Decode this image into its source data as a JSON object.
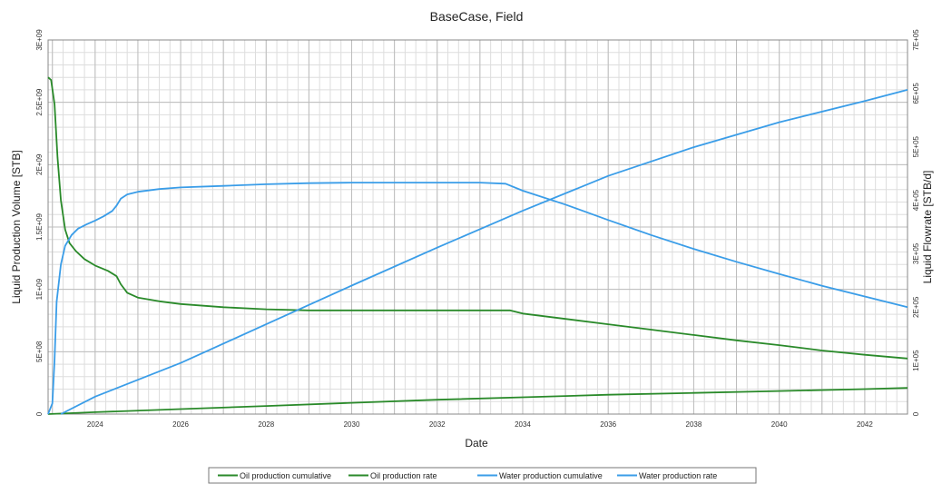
{
  "chart_data": {
    "type": "line",
    "title": "BaseCase, Field",
    "xlabel": "Date",
    "ylabel_left": "Liquid Production Volume [STB]",
    "ylabel_right": "Liquid Flowrate [STB/d]",
    "x_ticks": [
      "2024",
      "2026",
      "2028",
      "2030",
      "2032",
      "2034",
      "2036",
      "2038",
      "2040",
      "2042"
    ],
    "x_tick_years": [
      2024,
      2026,
      2028,
      2030,
      2032,
      2034,
      2036,
      2038,
      2040,
      2042
    ],
    "xlim": [
      2022.9,
      2043.0
    ],
    "left_axis": {
      "ylim": [
        0,
        3000000000
      ],
      "ticks": [
        {
          "v": 0,
          "label": "0"
        },
        {
          "v": 500000000,
          "label": "5E+08"
        },
        {
          "v": 1000000000,
          "label": "1E+09"
        },
        {
          "v": 1500000000,
          "label": "1.5E+09"
        },
        {
          "v": 2000000000,
          "label": "2E+09"
        },
        {
          "v": 2500000000,
          "label": "2.5E+09"
        },
        {
          "v": 3000000000,
          "label": "3E+09"
        }
      ]
    },
    "right_axis": {
      "ylim": [
        0,
        700000
      ],
      "ticks": [
        {
          "v": 0,
          "label": "0"
        },
        {
          "v": 100000,
          "label": "1E+05"
        },
        {
          "v": 200000,
          "label": "2E+05"
        },
        {
          "v": 300000,
          "label": "3E+05"
        },
        {
          "v": 400000,
          "label": "4E+05"
        },
        {
          "v": 500000,
          "label": "5E+05"
        },
        {
          "v": 600000,
          "label": "6E+05"
        },
        {
          "v": 700000,
          "label": "7E+05"
        }
      ]
    },
    "grid": true,
    "legend_position": "bottom",
    "series": [
      {
        "name": "Oil production cumulative",
        "axis": "left",
        "color": "#2a8a2a",
        "x": [
          2022.9,
          2024,
          2026,
          2028,
          2030,
          2032,
          2034,
          2036,
          2038,
          2040,
          2042,
          2043.0
        ],
        "y": [
          0,
          15000000,
          40000000,
          65000000,
          90000000,
          115000000,
          135000000,
          155000000,
          170000000,
          185000000,
          200000000,
          210000000
        ]
      },
      {
        "name": "Oil production rate",
        "axis": "right",
        "color": "#2a8a2a",
        "x": [
          2022.9,
          2022.97,
          2023.05,
          2023.12,
          2023.2,
          2023.3,
          2023.4,
          2023.55,
          2023.75,
          2024.0,
          2024.3,
          2024.5,
          2024.6,
          2024.75,
          2025.0,
          2025.5,
          2026.0,
          2027.0,
          2028.0,
          2029.0,
          2030.0,
          2031.0,
          2032.0,
          2033.0,
          2033.7,
          2034.0,
          2035.0,
          2036.0,
          2037.0,
          2038.0,
          2039.0,
          2040.0,
          2041.0,
          2042.0,
          2043.0
        ],
        "y": [
          630000,
          625000,
          580000,
          480000,
          400000,
          345000,
          320000,
          305000,
          290000,
          278000,
          268000,
          258000,
          243000,
          227000,
          218000,
          211000,
          206000,
          200000,
          196000,
          194000,
          194000,
          194000,
          194000,
          194000,
          194000,
          188000,
          178000,
          168000,
          158000,
          148000,
          138000,
          129000,
          119000,
          111000,
          104000
        ]
      },
      {
        "name": "Water production cumulative",
        "axis": "left",
        "color": "#3a9de8",
        "x": [
          2023.2,
          2024,
          2026,
          2028,
          2030,
          2032,
          2034,
          2036,
          2038,
          2040,
          2042,
          2043.0
        ],
        "y": [
          0,
          140000000,
          410000000,
          720000000,
          1030000000,
          1335000000,
          1630000000,
          1910000000,
          2140000000,
          2340000000,
          2510000000,
          2600000000
        ]
      },
      {
        "name": "Water production rate",
        "axis": "right",
        "color": "#3a9de8",
        "x": [
          2022.9,
          2023.0,
          2023.05,
          2023.1,
          2023.2,
          2023.3,
          2023.45,
          2023.6,
          2023.8,
          2024.0,
          2024.2,
          2024.4,
          2024.5,
          2024.6,
          2024.75,
          2025.0,
          2025.5,
          2026.0,
          2027.0,
          2028.0,
          2029.0,
          2030.0,
          2031.0,
          2032.0,
          2033.0,
          2033.6,
          2034.0,
          2035.0,
          2036.0,
          2037.0,
          2038.0,
          2039.0,
          2040.0,
          2041.0,
          2042.0,
          2043.0
        ],
        "y": [
          0,
          20000,
          100000,
          210000,
          280000,
          315000,
          335000,
          347000,
          355000,
          362000,
          370000,
          380000,
          390000,
          403000,
          411000,
          416000,
          421000,
          424000,
          427000,
          430000,
          432000,
          433000,
          433000,
          433000,
          433000,
          431000,
          418000,
          392000,
          363000,
          335000,
          309000,
          285000,
          262000,
          240000,
          220000,
          200000
        ]
      }
    ]
  }
}
